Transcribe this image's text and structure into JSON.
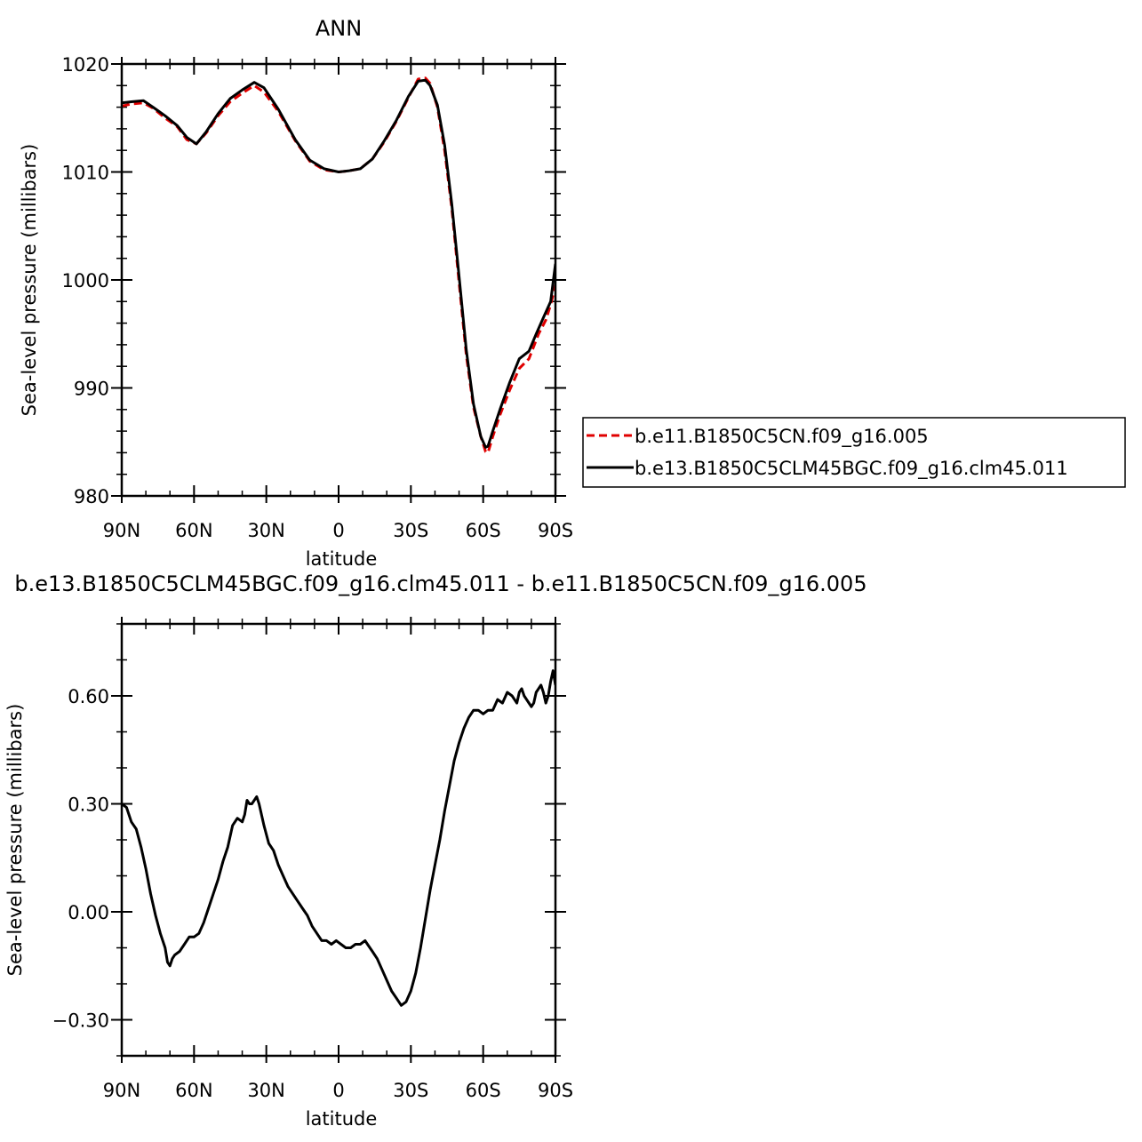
{
  "chart_data": [
    {
      "type": "line",
      "title": "ANN",
      "xlabel": "latitude",
      "ylabel": "Sea-level pressure (millibars)",
      "xlim": [
        90,
        -90
      ],
      "ylim": [
        980,
        1020
      ],
      "x_ticks": [
        {
          "value": 90,
          "label": "90N"
        },
        {
          "value": 60,
          "label": "60N"
        },
        {
          "value": 30,
          "label": "30N"
        },
        {
          "value": 0,
          "label": "0"
        },
        {
          "value": -30,
          "label": "30S"
        },
        {
          "value": -60,
          "label": "60S"
        },
        {
          "value": -90,
          "label": "90S"
        }
      ],
      "y_ticks": [
        {
          "value": 980,
          "label": "980"
        },
        {
          "value": 990,
          "label": "990"
        },
        {
          "value": 1000,
          "label": "1000"
        },
        {
          "value": 1010,
          "label": "1010"
        },
        {
          "value": 1020,
          "label": "1020"
        }
      ],
      "legend_position": "right",
      "series": [
        {
          "name": "b.e11.B1850C5CN.f09_g16.005",
          "color": "#e00000",
          "dash": "dashed",
          "points": [
            [
              90,
              1016.1
            ],
            [
              86,
              1016.3
            ],
            [
              81,
              1016.4
            ],
            [
              77,
              1015.9
            ],
            [
              72,
              1015.0
            ],
            [
              67,
              1014.2
            ],
            [
              63,
              1013.0
            ],
            [
              59,
              1012.6
            ],
            [
              55,
              1013.6
            ],
            [
              50,
              1015.2
            ],
            [
              45,
              1016.5
            ],
            [
              40,
              1017.3
            ],
            [
              35,
              1018.0
            ],
            [
              31,
              1017.4
            ],
            [
              25,
              1015.6
            ],
            [
              18,
              1012.9
            ],
            [
              12,
              1011.0
            ],
            [
              6,
              1010.2
            ],
            [
              0,
              1010.0
            ],
            [
              -4,
              1010.1
            ],
            [
              -9,
              1010.3
            ],
            [
              -14,
              1011.2
            ],
            [
              -19,
              1012.8
            ],
            [
              -24,
              1014.7
            ],
            [
              -29,
              1016.9
            ],
            [
              -33,
              1018.6
            ],
            [
              -36,
              1018.7
            ],
            [
              -38,
              1018.2
            ],
            [
              -41,
              1016.0
            ],
            [
              -44,
              1012.0
            ],
            [
              -47,
              1006.6
            ],
            [
              -50,
              999.7
            ],
            [
              -53,
              993.0
            ],
            [
              -56,
              988.2
            ],
            [
              -59,
              985.5
            ],
            [
              -61,
              984.1
            ],
            [
              -62,
              984.0
            ],
            [
              -64,
              985.5
            ],
            [
              -67,
              987.5
            ],
            [
              -71,
              989.8
            ],
            [
              -75,
              991.8
            ],
            [
              -79,
              992.7
            ],
            [
              -83,
              995.0
            ],
            [
              -86,
              996.3
            ],
            [
              -88,
              997.7
            ],
            [
              -90,
              999.5
            ]
          ]
        },
        {
          "name": "b.e13.B1850C5CLM45BGC.f09_g16.clm45.011",
          "color": "#000000",
          "dash": "solid",
          "points": [
            [
              90,
              1016.4
            ],
            [
              86,
              1016.5
            ],
            [
              81,
              1016.6
            ],
            [
              77,
              1016.0
            ],
            [
              72,
              1015.2
            ],
            [
              67,
              1014.3
            ],
            [
              63,
              1013.2
            ],
            [
              59,
              1012.6
            ],
            [
              55,
              1013.7
            ],
            [
              50,
              1015.4
            ],
            [
              45,
              1016.8
            ],
            [
              40,
              1017.6
            ],
            [
              35,
              1018.3
            ],
            [
              31,
              1017.8
            ],
            [
              25,
              1015.8
            ],
            [
              18,
              1013.0
            ],
            [
              12,
              1011.1
            ],
            [
              6,
              1010.3
            ],
            [
              0,
              1010.0
            ],
            [
              -4,
              1010.1
            ],
            [
              -9,
              1010.3
            ],
            [
              -14,
              1011.2
            ],
            [
              -19,
              1012.9
            ],
            [
              -24,
              1014.8
            ],
            [
              -29,
              1017.0
            ],
            [
              -33,
              1018.4
            ],
            [
              -36,
              1018.5
            ],
            [
              -38,
              1018.0
            ],
            [
              -41,
              1016.2
            ],
            [
              -44,
              1012.5
            ],
            [
              -47,
              1007.0
            ],
            [
              -50,
              1000.3
            ],
            [
              -53,
              993.5
            ],
            [
              -56,
              988.5
            ],
            [
              -59,
              985.5
            ],
            [
              -61,
              984.5
            ],
            [
              -62,
              984.6
            ],
            [
              -64,
              986.0
            ],
            [
              -67,
              988.0
            ],
            [
              -71,
              990.5
            ],
            [
              -75,
              992.7
            ],
            [
              -79,
              993.4
            ],
            [
              -82,
              995.0
            ],
            [
              -85,
              996.5
            ],
            [
              -88,
              998.0
            ],
            [
              -90,
              1001.5
            ]
          ]
        }
      ]
    },
    {
      "type": "line",
      "title": "b.e13.B1850C5CLM45BGC.f09_g16.clm45.011 - b.e11.B1850C5CN.f09_g16.005",
      "xlabel": "latitude",
      "ylabel": "Sea-level pressure (millibars)",
      "xlim": [
        90,
        -90
      ],
      "ylim": [
        -0.4,
        0.8
      ],
      "x_ticks": [
        {
          "value": 90,
          "label": "90N"
        },
        {
          "value": 60,
          "label": "60N"
        },
        {
          "value": 30,
          "label": "30N"
        },
        {
          "value": 0,
          "label": "0"
        },
        {
          "value": -30,
          "label": "30S"
        },
        {
          "value": -60,
          "label": "60S"
        },
        {
          "value": -90,
          "label": "90S"
        }
      ],
      "y_ticks": [
        {
          "value": -0.3,
          "label": "−0.30"
        },
        {
          "value": 0.0,
          "label": "0.00"
        },
        {
          "value": 0.3,
          "label": "0.30"
        },
        {
          "value": 0.6,
          "label": "0.60"
        }
      ],
      "series": [
        {
          "color": "#000000",
          "dash": "solid",
          "points": [
            [
              90,
              0.3
            ],
            [
              88,
              0.29
            ],
            [
              86,
              0.25
            ],
            [
              84,
              0.23
            ],
            [
              82,
              0.18
            ],
            [
              80,
              0.12
            ],
            [
              78,
              0.05
            ],
            [
              76,
              -0.01
            ],
            [
              74,
              -0.06
            ],
            [
              72,
              -0.1
            ],
            [
              71,
              -0.14
            ],
            [
              70,
              -0.15
            ],
            [
              69,
              -0.13
            ],
            [
              68,
              -0.12
            ],
            [
              66,
              -0.11
            ],
            [
              64,
              -0.09
            ],
            [
              62,
              -0.07
            ],
            [
              60,
              -0.07
            ],
            [
              58,
              -0.06
            ],
            [
              56,
              -0.03
            ],
            [
              54,
              0.01
            ],
            [
              52,
              0.05
            ],
            [
              50,
              0.09
            ],
            [
              48,
              0.14
            ],
            [
              46,
              0.18
            ],
            [
              44,
              0.24
            ],
            [
              42,
              0.26
            ],
            [
              40,
              0.25
            ],
            [
              39,
              0.27
            ],
            [
              38,
              0.31
            ],
            [
              37,
              0.3
            ],
            [
              36,
              0.3
            ],
            [
              35,
              0.31
            ],
            [
              34,
              0.32
            ],
            [
              33,
              0.3
            ],
            [
              31,
              0.24
            ],
            [
              29,
              0.19
            ],
            [
              27,
              0.17
            ],
            [
              25,
              0.13
            ],
            [
              23,
              0.1
            ],
            [
              21,
              0.07
            ],
            [
              19,
              0.05
            ],
            [
              17,
              0.03
            ],
            [
              15,
              0.01
            ],
            [
              13,
              -0.01
            ],
            [
              11,
              -0.04
            ],
            [
              9,
              -0.06
            ],
            [
              7,
              -0.08
            ],
            [
              5,
              -0.08
            ],
            [
              3,
              -0.09
            ],
            [
              1,
              -0.08
            ],
            [
              -1,
              -0.09
            ],
            [
              -3,
              -0.1
            ],
            [
              -5,
              -0.1
            ],
            [
              -7,
              -0.09
            ],
            [
              -9,
              -0.09
            ],
            [
              -11,
              -0.08
            ],
            [
              -12,
              -0.09
            ],
            [
              -14,
              -0.11
            ],
            [
              -16,
              -0.13
            ],
            [
              -18,
              -0.16
            ],
            [
              -20,
              -0.19
            ],
            [
              -22,
              -0.22
            ],
            [
              -24,
              -0.24
            ],
            [
              -26,
              -0.26
            ],
            [
              -28,
              -0.25
            ],
            [
              -30,
              -0.22
            ],
            [
              -32,
              -0.17
            ],
            [
              -34,
              -0.1
            ],
            [
              -36,
              -0.02
            ],
            [
              -38,
              0.06
            ],
            [
              -40,
              0.13
            ],
            [
              -42,
              0.2
            ],
            [
              -44,
              0.28
            ],
            [
              -46,
              0.35
            ],
            [
              -48,
              0.42
            ],
            [
              -50,
              0.47
            ],
            [
              -52,
              0.51
            ],
            [
              -54,
              0.54
            ],
            [
              -56,
              0.56
            ],
            [
              -58,
              0.56
            ],
            [
              -60,
              0.55
            ],
            [
              -62,
              0.56
            ],
            [
              -64,
              0.56
            ],
            [
              -66,
              0.59
            ],
            [
              -68,
              0.58
            ],
            [
              -70,
              0.61
            ],
            [
              -72,
              0.6
            ],
            [
              -73,
              0.59
            ],
            [
              -74,
              0.58
            ],
            [
              -75,
              0.61
            ],
            [
              -76,
              0.62
            ],
            [
              -77,
              0.6
            ],
            [
              -78,
              0.59
            ],
            [
              -79,
              0.58
            ],
            [
              -80,
              0.57
            ],
            [
              -81,
              0.58
            ],
            [
              -82,
              0.61
            ],
            [
              -83,
              0.62
            ],
            [
              -84,
              0.63
            ],
            [
              -85,
              0.61
            ],
            [
              -86,
              0.58
            ],
            [
              -87,
              0.6
            ],
            [
              -88,
              0.64
            ],
            [
              -89,
              0.67
            ],
            [
              -90,
              0.63
            ]
          ]
        }
      ]
    }
  ]
}
